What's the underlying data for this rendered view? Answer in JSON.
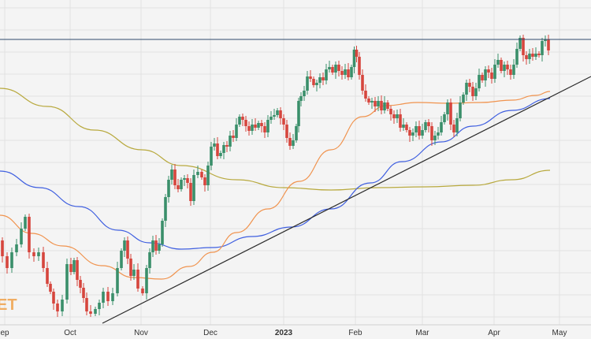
{
  "chart_data": {
    "type": "candlestick",
    "x_ticks": [
      {
        "label": "ep",
        "date": "2022-09-01"
      },
      {
        "label": "Oct",
        "date": "2022-10-01"
      },
      {
        "label": "Nov",
        "date": "2022-11-01"
      },
      {
        "label": "Dec",
        "date": "2022-12-01"
      },
      {
        "label": "2023",
        "date": "2023-01-01",
        "bold": true
      },
      {
        "label": "Feb",
        "date": "2023-02-01"
      },
      {
        "label": "Mar",
        "date": "2023-03-01"
      },
      {
        "label": "Apr",
        "date": "2023-04-01"
      },
      {
        "label": "May",
        "date": "2023-05-01"
      }
    ],
    "watermark": "ET",
    "colors": {
      "up": "#3a8f6a",
      "down": "#d6453d",
      "sma_fast": "#f0934e",
      "sma_mid": "#3f5fe0",
      "sma_slow": "#b8a93e",
      "trendline": "#2b2b2b",
      "resistance": "#2f4a6b",
      "background": "#f4f4f4",
      "grid": "#e2e2e2"
    },
    "grid": true
  }
}
